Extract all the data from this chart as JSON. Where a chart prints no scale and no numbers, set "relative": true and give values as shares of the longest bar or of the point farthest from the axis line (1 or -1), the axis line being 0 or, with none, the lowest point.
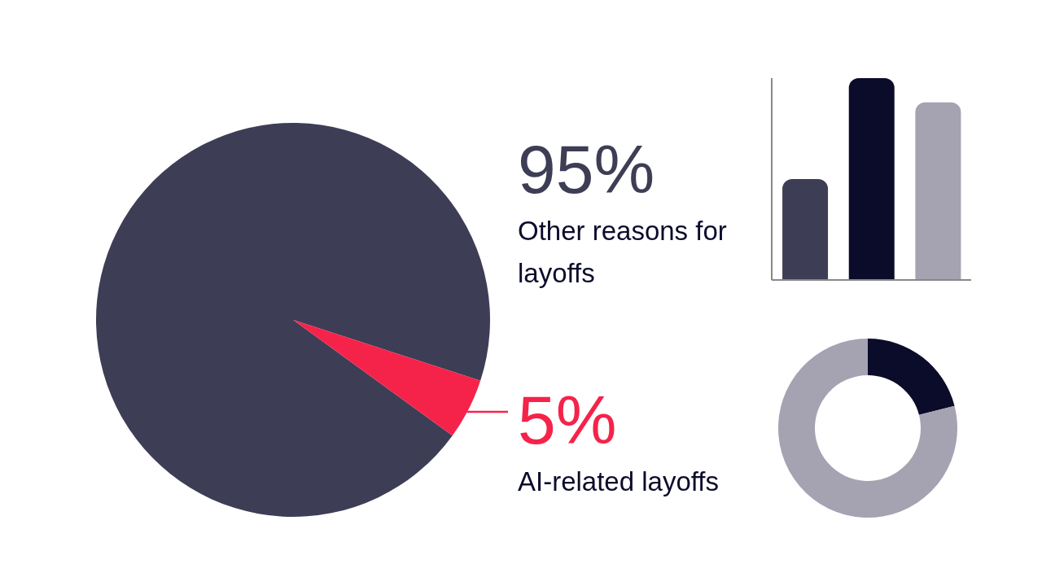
{
  "chart_data": [
    {
      "type": "pie",
      "categories": [
        "Other reasons for layoffs",
        "AI-related layoffs"
      ],
      "values": [
        95,
        5
      ],
      "colors": [
        "#3d3d55",
        "#f5234a"
      ],
      "value_labels": [
        "95%",
        "5%"
      ]
    },
    {
      "type": "bar",
      "categories": [
        null,
        null,
        null
      ],
      "values": [
        0.5,
        1,
        0.88
      ],
      "colors": [
        "#3d3d55",
        "#0b0c2a",
        "#a5a3b2"
      ],
      "relative": true
    },
    {
      "type": "donut",
      "categories": [
        null,
        null
      ],
      "values": [
        21,
        79
      ],
      "colors": [
        "#0b0c2a",
        "#a5a3b2"
      ]
    }
  ]
}
